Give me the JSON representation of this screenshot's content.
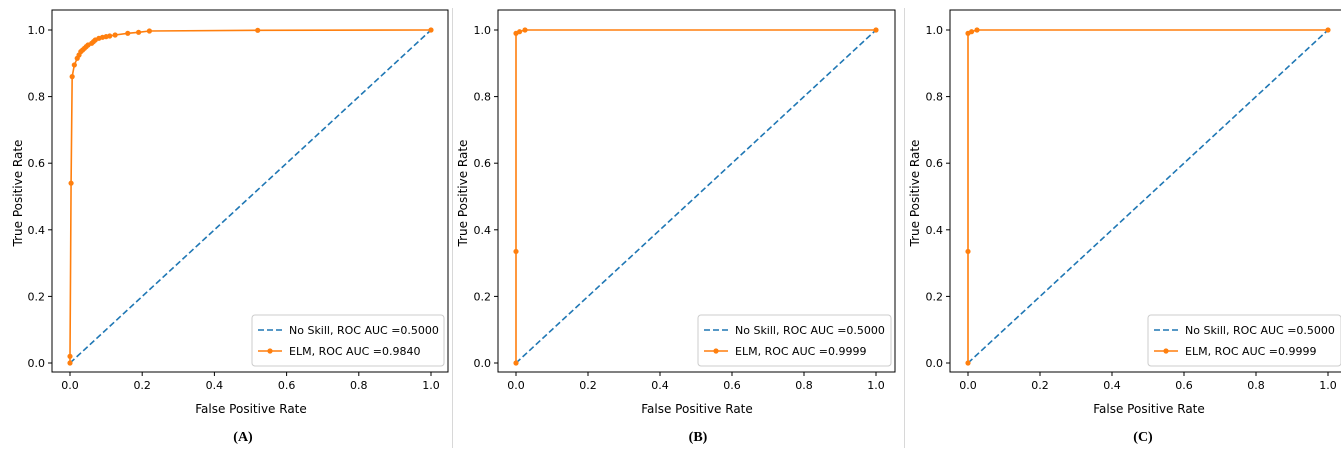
{
  "chart_data": [
    {
      "type": "line",
      "caption": "(A)",
      "xlabel": "False Positive Rate",
      "ylabel": "True Positive Rate",
      "xlim": [
        0,
        1
      ],
      "ylim": [
        0,
        1
      ],
      "xticks": [
        "0.0",
        "0.2",
        "0.4",
        "0.6",
        "0.8",
        "1.0"
      ],
      "yticks": [
        "0.0",
        "0.2",
        "0.4",
        "0.6",
        "0.8",
        "1.0"
      ],
      "grid": false,
      "legend_position": "bottom-right",
      "series": [
        {
          "name": "No Skill, ROC AUC =0.5000",
          "color": "#1f77b4",
          "style": "dashed",
          "x": [
            0,
            1
          ],
          "y": [
            0,
            1
          ]
        },
        {
          "name": "ELM, ROC AUC =0.9840",
          "color": "#ff7f0e",
          "style": "solid-marker",
          "x": [
            0,
            0,
            0.003,
            0.006,
            0.012,
            0.02,
            0.025,
            0.03,
            0.035,
            0.04,
            0.045,
            0.05,
            0.06,
            0.065,
            0.07,
            0.08,
            0.09,
            0.1,
            0.11,
            0.125,
            0.16,
            0.19,
            0.22,
            0.52,
            1.0
          ],
          "y": [
            0,
            0.02,
            0.54,
            0.86,
            0.895,
            0.915,
            0.925,
            0.935,
            0.94,
            0.945,
            0.95,
            0.955,
            0.96,
            0.965,
            0.97,
            0.975,
            0.978,
            0.98,
            0.982,
            0.985,
            0.99,
            0.993,
            0.997,
            0.999,
            1.0
          ]
        }
      ]
    },
    {
      "type": "line",
      "caption": "(B)",
      "xlabel": "False Positive Rate",
      "ylabel": "True Positive Rate",
      "xlim": [
        0,
        1
      ],
      "ylim": [
        0,
        1
      ],
      "xticks": [
        "0.0",
        "0.2",
        "0.4",
        "0.6",
        "0.8",
        "1.0"
      ],
      "yticks": [
        "0.0",
        "0.2",
        "0.4",
        "0.6",
        "0.8",
        "1.0"
      ],
      "grid": false,
      "legend_position": "bottom-right",
      "series": [
        {
          "name": "No Skill, ROC AUC =0.5000",
          "color": "#1f77b4",
          "style": "dashed",
          "x": [
            0,
            1
          ],
          "y": [
            0,
            1
          ]
        },
        {
          "name": "ELM, ROC AUC =0.9999",
          "color": "#ff7f0e",
          "style": "solid-marker",
          "x": [
            0,
            0,
            0,
            0.01,
            0.025,
            1.0
          ],
          "y": [
            0,
            0.335,
            0.99,
            0.995,
            1.0,
            1.0
          ]
        }
      ]
    },
    {
      "type": "line",
      "caption": "(C)",
      "xlabel": "False Positive Rate",
      "ylabel": "True Positive Rate",
      "xlim": [
        0,
        1
      ],
      "ylim": [
        0,
        1
      ],
      "xticks": [
        "0.0",
        "0.2",
        "0.4",
        "0.6",
        "0.8",
        "1.0"
      ],
      "yticks": [
        "0.0",
        "0.2",
        "0.4",
        "0.6",
        "0.8",
        "1.0"
      ],
      "grid": false,
      "legend_position": "bottom-right",
      "series": [
        {
          "name": "No Skill, ROC AUC =0.5000",
          "color": "#1f77b4",
          "style": "dashed",
          "x": [
            0,
            1
          ],
          "y": [
            0,
            1
          ]
        },
        {
          "name": "ELM, ROC AUC =0.9999",
          "color": "#ff7f0e",
          "style": "solid-marker",
          "x": [
            0,
            0,
            0,
            0.01,
            0.025,
            1.0
          ],
          "y": [
            0,
            0.335,
            0.99,
            0.995,
            1.0,
            1.0
          ]
        }
      ]
    }
  ]
}
